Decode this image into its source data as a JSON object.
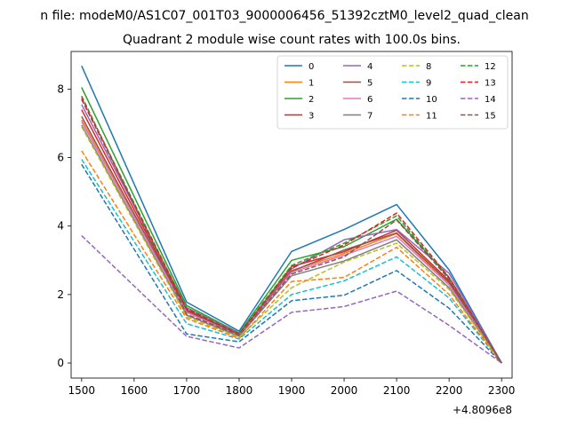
{
  "chart_data": {
    "type": "line",
    "suptitle": "n file: modeM0/AS1C07_001T03_9000006456_51392cztM0_level2_quad_clean",
    "title": "Quadrant 2 module wise count rates with 100.0s bins.",
    "xlabel": "",
    "ylabel": "",
    "x_offset_label": "+4.8096e8",
    "x": [
      1500,
      1700,
      1800,
      1900,
      2000,
      2100,
      2200,
      2300
    ],
    "xticks": [
      1500,
      1600,
      1700,
      1800,
      1900,
      2000,
      2100,
      2200,
      2300
    ],
    "yticks": [
      0,
      2,
      4,
      6,
      8
    ],
    "xlim": [
      1480,
      2320
    ],
    "ylim": [
      -0.44,
      9.1
    ],
    "grid": false,
    "legend_position": "top-right",
    "series": [
      {
        "name": "0",
        "color": "#1f77b4",
        "dash": false,
        "values": [
          8.68,
          1.78,
          0.93,
          3.26,
          3.9,
          4.63,
          2.72,
          0.0
        ]
      },
      {
        "name": "1",
        "color": "#ff7f0e",
        "dash": false,
        "values": [
          7.1,
          1.5,
          0.8,
          2.7,
          3.2,
          3.78,
          2.3,
          0.0
        ]
      },
      {
        "name": "2",
        "color": "#2ca02c",
        "dash": false,
        "values": [
          8.05,
          1.68,
          0.88,
          3.0,
          3.4,
          4.2,
          2.5,
          0.0
        ]
      },
      {
        "name": "3",
        "color": "#d62728",
        "dash": false,
        "values": [
          7.4,
          1.55,
          0.83,
          2.82,
          3.25,
          3.88,
          2.4,
          0.0
        ]
      },
      {
        "name": "4",
        "color": "#9467bd",
        "dash": false,
        "values": [
          7.55,
          1.62,
          0.87,
          2.75,
          3.6,
          3.9,
          2.62,
          0.0
        ]
      },
      {
        "name": "5",
        "color": "#8c564b",
        "dash": false,
        "values": [
          7.2,
          1.52,
          0.82,
          2.68,
          3.3,
          3.8,
          2.35,
          0.0
        ]
      },
      {
        "name": "6",
        "color": "#e377c2",
        "dash": false,
        "values": [
          7.05,
          1.48,
          0.8,
          2.65,
          3.15,
          3.7,
          2.28,
          0.0
        ]
      },
      {
        "name": "7",
        "color": "#7f7f7f",
        "dash": false,
        "values": [
          6.95,
          1.4,
          0.78,
          2.55,
          2.98,
          3.6,
          2.2,
          0.0
        ]
      },
      {
        "name": "8",
        "color": "#bcbd22",
        "dash": true,
        "values": [
          6.9,
          1.35,
          0.75,
          2.2,
          2.95,
          3.5,
          2.15,
          0.0
        ]
      },
      {
        "name": "9",
        "color": "#17becf",
        "dash": true,
        "values": [
          5.95,
          1.15,
          0.7,
          2.0,
          2.4,
          3.1,
          1.9,
          0.0
        ]
      },
      {
        "name": "10",
        "color": "#1f77b4",
        "dash": true,
        "values": [
          5.8,
          0.85,
          0.62,
          1.82,
          1.98,
          2.7,
          1.6,
          0.0
        ]
      },
      {
        "name": "11",
        "color": "#ff7f0e",
        "dash": true,
        "values": [
          6.2,
          1.3,
          0.72,
          2.38,
          2.5,
          3.38,
          2.0,
          0.0
        ]
      },
      {
        "name": "12",
        "color": "#2ca02c",
        "dash": true,
        "values": [
          7.75,
          1.6,
          0.86,
          2.85,
          3.5,
          4.3,
          2.45,
          0.0
        ]
      },
      {
        "name": "13",
        "color": "#d62728",
        "dash": true,
        "values": [
          7.7,
          1.58,
          0.85,
          2.78,
          3.45,
          4.38,
          2.5,
          0.0
        ]
      },
      {
        "name": "14",
        "color": "#9467bd",
        "dash": true,
        "values": [
          3.72,
          0.78,
          0.44,
          1.48,
          1.65,
          2.1,
          1.1,
          0.0
        ]
      },
      {
        "name": "15",
        "color": "#8c564b",
        "dash": true,
        "values": [
          7.8,
          1.42,
          0.82,
          2.6,
          3.1,
          4.18,
          2.45,
          0.0
        ]
      }
    ]
  }
}
